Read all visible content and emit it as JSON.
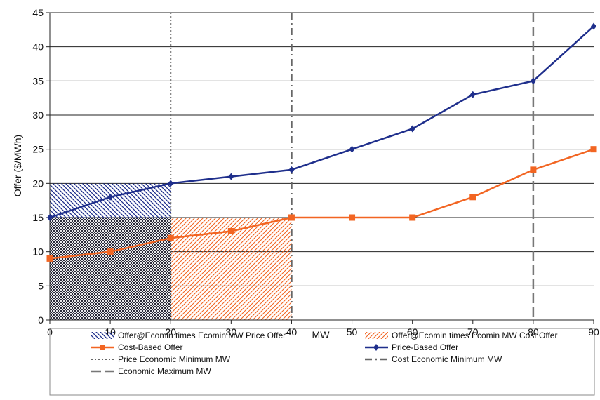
{
  "chart_data": {
    "type": "line",
    "ylabel": "Offer ($/MWh)",
    "xlabel": "MW",
    "xlim": [
      0,
      90
    ],
    "ylim": [
      0,
      45
    ],
    "xticks": [
      0,
      10,
      20,
      30,
      40,
      50,
      60,
      70,
      80,
      90
    ],
    "yticks": [
      0,
      5,
      10,
      15,
      20,
      25,
      30,
      35,
      40,
      45
    ],
    "grid": "horizontal",
    "legend_position": "bottom",
    "series": [
      {
        "name": "Cost-Based Offer",
        "color": "#F26522",
        "marker": "square",
        "x": [
          0,
          10,
          20,
          30,
          40,
          50,
          60,
          70,
          80,
          90
        ],
        "y": [
          9,
          10,
          12,
          13,
          15,
          15,
          15,
          18,
          22,
          25
        ]
      },
      {
        "name": "Price-Based Offer",
        "color": "#1F2F8C",
        "marker": "diamond",
        "x": [
          0,
          10,
          20,
          30,
          40,
          50,
          60,
          70,
          80,
          90
        ],
        "y": [
          15,
          18,
          20,
          21,
          22,
          25,
          28,
          33,
          35,
          43
        ]
      }
    ],
    "areas": [
      {
        "name": "Offer@Ecomin times Ecomin MW Price Offer",
        "color": "#1F2F8C",
        "pattern": "hatch-backslash",
        "x": [
          0,
          20
        ],
        "y": [
          0,
          20
        ]
      },
      {
        "name": "Offer@Ecomin times Ecomin MW Cost Offer",
        "color": "#F26522",
        "pattern": "hatch-slash",
        "x": [
          20,
          40
        ],
        "y": [
          0,
          15
        ]
      },
      {
        "name": "",
        "color": "#333333",
        "pattern": "crosshatch",
        "x": [
          0,
          20
        ],
        "y": [
          0,
          15
        ]
      }
    ],
    "vlines": [
      {
        "name": "Price Economic Minimum MW",
        "x": 20,
        "style": "dotted",
        "color": "#666666"
      },
      {
        "name": "Cost Economic Minimum MW",
        "x": 40,
        "style": "dashdot",
        "color": "#666666"
      },
      {
        "name": "Economic Maximum MW",
        "x": 80,
        "style": "dashed",
        "color": "#777777"
      }
    ],
    "legend": [
      {
        "label": "Offer@Ecomin times Ecomin MW Price Offer",
        "kind": "hatch-price"
      },
      {
        "label": "Offer@Ecomin times Ecomin MW Cost Offer",
        "kind": "hatch-cost"
      },
      {
        "label": "Cost-Based Offer",
        "kind": "line-cost"
      },
      {
        "label": "Price-Based Offer",
        "kind": "line-price"
      },
      {
        "label": "Price Economic Minimum MW",
        "kind": "dotted"
      },
      {
        "label": "Cost Economic Minimum MW",
        "kind": "dashdot"
      },
      {
        "label": "Economic Maximum MW",
        "kind": "dashed"
      }
    ]
  }
}
